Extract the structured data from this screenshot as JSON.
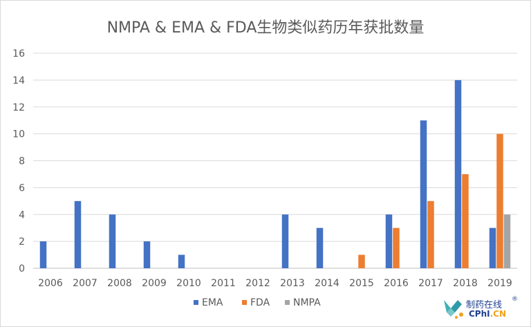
{
  "chart_data": {
    "type": "bar",
    "title": "NMPA & EMA & FDA生物类似药历年获批数量",
    "categories": [
      "2006",
      "2007",
      "2008",
      "2009",
      "2010",
      "2011",
      "2012",
      "2013",
      "2014",
      "2015",
      "2016",
      "2017",
      "2018",
      "2019"
    ],
    "series": [
      {
        "name": "EMA",
        "color": "#4472c4",
        "values": [
          2,
          5,
          4,
          2,
          1,
          0,
          0,
          4,
          3,
          0,
          4,
          11,
          14,
          3
        ]
      },
      {
        "name": "FDA",
        "color": "#ed7d31",
        "values": [
          0,
          0,
          0,
          0,
          0,
          0,
          0,
          0,
          0,
          1,
          3,
          5,
          7,
          10
        ]
      },
      {
        "name": "NMPA",
        "color": "#a5a5a5",
        "values": [
          0,
          0,
          0,
          0,
          0,
          0,
          0,
          0,
          0,
          0,
          0,
          0,
          0,
          4
        ]
      }
    ],
    "ylim": [
      0,
      16
    ],
    "yticks": [
      0,
      2,
      4,
      6,
      8,
      10,
      12,
      14,
      16
    ],
    "grid": true,
    "legend": "bottom-center"
  },
  "logo": {
    "name_cn": "制药在线",
    "reg_mark": "®",
    "name_en_main": "CPhI",
    "name_en_suffix": ".CN",
    "icon": "cphi-logo-icon"
  }
}
